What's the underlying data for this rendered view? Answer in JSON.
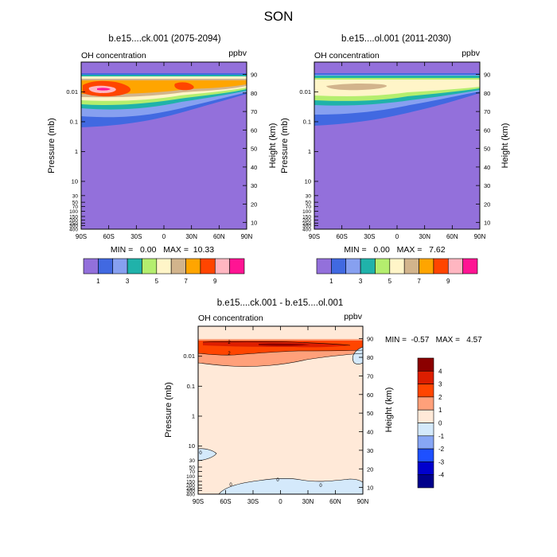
{
  "figure": {
    "title": "SON"
  },
  "colors": {
    "seq": [
      "#9370db",
      "#4169e1",
      "#87a0f0",
      "#20b2aa",
      "#b4ee6e",
      "#fff5c8",
      "#d2b48c",
      "#ffa500",
      "#ff4500",
      "#ffb6c1",
      "#ff1493"
    ],
    "diff": [
      "#00008b",
      "#0000cd",
      "#1e50ff",
      "#87a6f5",
      "#d4e9fb",
      "#ffe9d8",
      "#ffa07a",
      "#ff4500",
      "#dc1e00",
      "#8b0000"
    ]
  },
  "chart_data": [
    {
      "type": "contour",
      "title": "b.e15....ck.001 (2075-2094)",
      "left_label": "OH concentration",
      "units": "ppbv",
      "ylabel": "Pressure (mb)",
      "y2label": "Height (km)",
      "x_ticks": [
        "90S",
        "60S",
        "30S",
        "0",
        "30N",
        "60N",
        "90N"
      ],
      "y_ticks": [
        "0.01",
        "0.1",
        "1",
        "10",
        "30",
        "50",
        "70",
        "100",
        "150",
        "200",
        "250",
        "300",
        "400"
      ],
      "y2_ticks": [
        "90",
        "80",
        "70",
        "60",
        "50",
        "40",
        "30",
        "20",
        "10"
      ],
      "min_max_label": "MIN =   0.00   MAX =  10.33",
      "min": 0.0,
      "max": 10.33,
      "colorbar_labels": [
        "1",
        "3",
        "5",
        "7",
        "9"
      ]
    },
    {
      "type": "contour",
      "title": "b.e15....ol.001 (2011-2030)",
      "left_label": "OH concentration",
      "units": "ppbv",
      "ylabel": "Pressure (mb)",
      "y2label": "Height (km)",
      "x_ticks": [
        "90S",
        "60S",
        "30S",
        "0",
        "30N",
        "60N",
        "90N"
      ],
      "y_ticks": [
        "0.01",
        "0.1",
        "1",
        "10",
        "30",
        "50",
        "70",
        "100",
        "150",
        "200",
        "250",
        "300",
        "400"
      ],
      "y2_ticks": [
        "90",
        "80",
        "70",
        "60",
        "50",
        "40",
        "30",
        "20",
        "10"
      ],
      "min_max_label": "MIN =   0.00   MAX =   7.62",
      "min": 0.0,
      "max": 7.62,
      "colorbar_labels": [
        "1",
        "3",
        "5",
        "7",
        "9"
      ]
    },
    {
      "type": "contour",
      "title": "b.e15....ck.001 - b.e15....ol.001",
      "left_label": "OH concentration",
      "units": "ppbv",
      "ylabel": "Pressure (mb)",
      "y2label": "Height (km)",
      "x_ticks": [
        "90S",
        "60S",
        "30S",
        "0",
        "30N",
        "60N",
        "90N"
      ],
      "y_ticks": [
        "0.01",
        "0.1",
        "1",
        "10",
        "30",
        "50",
        "70",
        "100",
        "150",
        "200",
        "250",
        "300",
        "400"
      ],
      "y2_ticks": [
        "90",
        "80",
        "70",
        "60",
        "50",
        "40",
        "30",
        "20",
        "10"
      ],
      "min_max_label": "MIN =  -0.57   MAX =   4.57",
      "min": -0.57,
      "max": 4.57,
      "colorbar_labels": [
        "4",
        "3",
        "2",
        "1",
        "0",
        "-1",
        "-2",
        "-3",
        "-4"
      ],
      "contour_labels": [
        "2",
        "2",
        "0",
        "0",
        "0",
        "0"
      ]
    }
  ]
}
